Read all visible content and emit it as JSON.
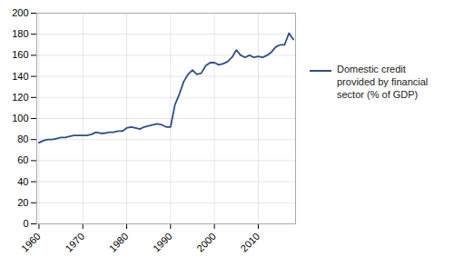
{
  "chart_data": {
    "type": "line",
    "x": [
      1960,
      1961,
      1962,
      1963,
      1964,
      1965,
      1966,
      1967,
      1968,
      1969,
      1970,
      1971,
      1972,
      1973,
      1974,
      1975,
      1976,
      1977,
      1978,
      1979,
      1980,
      1981,
      1982,
      1983,
      1984,
      1985,
      1986,
      1987,
      1988,
      1989,
      1990,
      1991,
      1992,
      1993,
      1994,
      1995,
      1996,
      1997,
      1998,
      1999,
      2000,
      2001,
      2002,
      2003,
      2004,
      2005,
      2006,
      2007,
      2008,
      2009,
      2010,
      2011,
      2012,
      2013,
      2014,
      2015,
      2016,
      2017,
      2018
    ],
    "series": [
      {
        "name": "Domestic credit\nprovided by financial\nsector (% of GDP)",
        "color": "#2e4f8a",
        "values": [
          77,
          79,
          80,
          80,
          81,
          82,
          82,
          83,
          84,
          84,
          84,
          84,
          85,
          87,
          86,
          86,
          87,
          87,
          88,
          88,
          91,
          92,
          91,
          90,
          92,
          93,
          94,
          95,
          94,
          92,
          92,
          113,
          123,
          135,
          142,
          146,
          142,
          143,
          150,
          153,
          153,
          151,
          152,
          154,
          158,
          165,
          160,
          158,
          160,
          158,
          159,
          158,
          160,
          163,
          168,
          170,
          170,
          181,
          175
        ]
      }
    ],
    "xlim": [
      1959.5,
      2018.5
    ],
    "xticks": [
      1960,
      1970,
      1980,
      1990,
      2000,
      2010
    ],
    "ylim": [
      0,
      200
    ],
    "yticks": [
      0,
      20,
      40,
      60,
      80,
      100,
      120,
      140,
      160,
      180,
      200
    ],
    "grid": true,
    "legend": "right"
  }
}
